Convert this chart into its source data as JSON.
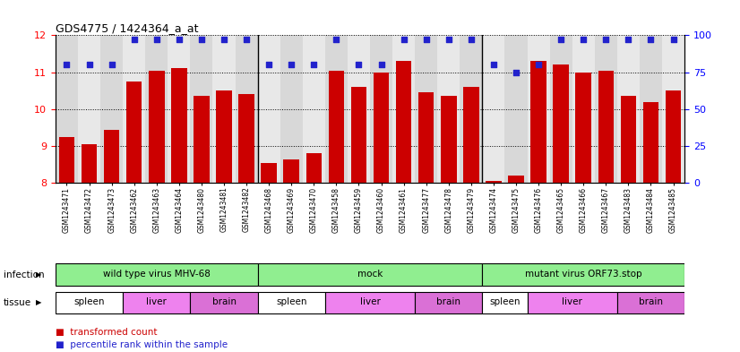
{
  "title": "GDS4775 / 1424364_a_at",
  "samples": [
    "GSM1243471",
    "GSM1243472",
    "GSM1243473",
    "GSM1243462",
    "GSM1243463",
    "GSM1243464",
    "GSM1243480",
    "GSM1243481",
    "GSM1243482",
    "GSM1243468",
    "GSM1243469",
    "GSM1243470",
    "GSM1243458",
    "GSM1243459",
    "GSM1243460",
    "GSM1243461",
    "GSM1243477",
    "GSM1243478",
    "GSM1243479",
    "GSM1243474",
    "GSM1243475",
    "GSM1243476",
    "GSM1243465",
    "GSM1243466",
    "GSM1243467",
    "GSM1243483",
    "GSM1243484",
    "GSM1243485"
  ],
  "bar_values": [
    9.25,
    9.05,
    9.45,
    10.75,
    11.05,
    11.1,
    10.35,
    10.5,
    10.4,
    8.55,
    8.65,
    8.8,
    11.05,
    10.6,
    11.0,
    11.3,
    10.45,
    10.35,
    10.6,
    8.05,
    8.2,
    11.3,
    11.2,
    11.0,
    11.05,
    10.35,
    10.2,
    10.5
  ],
  "percentile_values": [
    80,
    80,
    80,
    97,
    97,
    97,
    97,
    97,
    97,
    80,
    80,
    80,
    97,
    80,
    80,
    97,
    97,
    97,
    97,
    80,
    75,
    80,
    97,
    97,
    97,
    97,
    97,
    97
  ],
  "bar_color": "#cc0000",
  "dot_color": "#2222cc",
  "ylim_left": [
    8,
    12
  ],
  "ylim_right": [
    0,
    100
  ],
  "yticks_left": [
    8,
    9,
    10,
    11,
    12
  ],
  "yticks_right": [
    0,
    25,
    50,
    75,
    100
  ],
  "infection_labels": [
    {
      "text": "wild type virus MHV-68",
      "start": 0,
      "end": 9
    },
    {
      "text": "mock",
      "start": 9,
      "end": 19
    },
    {
      "text": "mutant virus ORF73.stop",
      "start": 19,
      "end": 28
    }
  ],
  "tissue_labels": [
    {
      "text": "spleen",
      "start": 0,
      "end": 3,
      "color": "#ffffff"
    },
    {
      "text": "liver",
      "start": 3,
      "end": 6,
      "color": "#ee82ee"
    },
    {
      "text": "brain",
      "start": 6,
      "end": 9,
      "color": "#da70d6"
    },
    {
      "text": "spleen",
      "start": 9,
      "end": 12,
      "color": "#ffffff"
    },
    {
      "text": "liver",
      "start": 12,
      "end": 16,
      "color": "#ee82ee"
    },
    {
      "text": "brain",
      "start": 16,
      "end": 19,
      "color": "#da70d6"
    },
    {
      "text": "spleen",
      "start": 19,
      "end": 21,
      "color": "#ffffff"
    },
    {
      "text": "liver",
      "start": 21,
      "end": 25,
      "color": "#ee82ee"
    },
    {
      "text": "brain",
      "start": 25,
      "end": 28,
      "color": "#da70d6"
    }
  ],
  "infection_color": "#90ee90",
  "infection_row_label": "infection",
  "tissue_row_label": "tissue",
  "legend_bar": "transformed count",
  "legend_dot": "percentile rank within the sample",
  "plot_bg_color": "#ffffff",
  "axes_bg_color": "#e8e8e8"
}
